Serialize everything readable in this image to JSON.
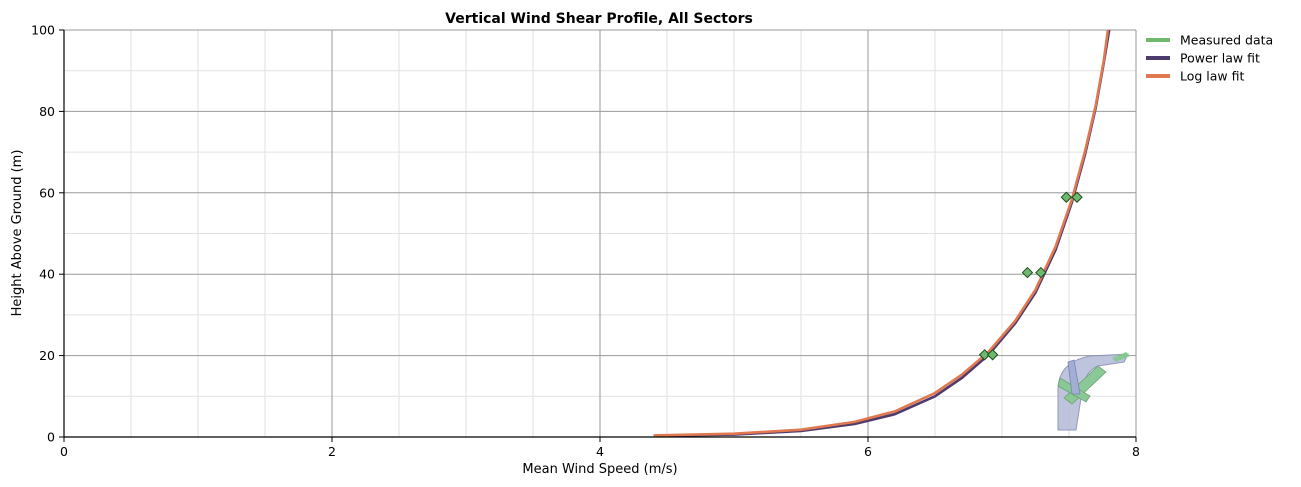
{
  "chart_data": {
    "type": "line",
    "title": "Vertical Wind Shear Profile, All Sectors",
    "xlabel": "Mean Wind Speed (m/s)",
    "ylabel": "Height Above Ground (m)",
    "xlim": [
      0,
      8
    ],
    "ylim": [
      0,
      100
    ],
    "x_ticks": [
      0,
      2,
      4,
      6,
      8
    ],
    "y_ticks": [
      0,
      20,
      40,
      60,
      80,
      100
    ],
    "x_minor_step": 0.5,
    "y_minor_step": 10,
    "grid": true,
    "legend_position": "top-right outside plot",
    "series": [
      {
        "name": "Measured data",
        "kind": "scatter-diamond",
        "color": "#6fb86f",
        "points": [
          {
            "x": 6.87,
            "y": 20.2
          },
          {
            "x": 6.93,
            "y": 20.2
          },
          {
            "x": 7.19,
            "y": 40.4
          },
          {
            "x": 7.29,
            "y": 40.4
          },
          {
            "x": 7.48,
            "y": 58.9
          },
          {
            "x": 7.56,
            "y": 58.9
          }
        ]
      },
      {
        "name": "Power law fit",
        "kind": "line",
        "color": "#4e3b6e",
        "points": [
          {
            "x": 4.4,
            "y": 0.3
          },
          {
            "x": 5.0,
            "y": 0.6
          },
          {
            "x": 5.5,
            "y": 1.5
          },
          {
            "x": 5.9,
            "y": 3.2
          },
          {
            "x": 6.2,
            "y": 5.6
          },
          {
            "x": 6.5,
            "y": 10.0
          },
          {
            "x": 6.7,
            "y": 14.5
          },
          {
            "x": 6.9,
            "y": 20.2
          },
          {
            "x": 7.1,
            "y": 28.0
          },
          {
            "x": 7.25,
            "y": 35.5
          },
          {
            "x": 7.4,
            "y": 46.0
          },
          {
            "x": 7.52,
            "y": 57.5
          },
          {
            "x": 7.62,
            "y": 69.5
          },
          {
            "x": 7.7,
            "y": 81.0
          },
          {
            "x": 7.76,
            "y": 92.0
          },
          {
            "x": 7.8,
            "y": 100.0
          }
        ]
      },
      {
        "name": "Log law fit",
        "kind": "line",
        "color": "#e07850",
        "points": [
          {
            "x": 4.4,
            "y": 0.4
          },
          {
            "x": 5.0,
            "y": 0.8
          },
          {
            "x": 5.5,
            "y": 1.8
          },
          {
            "x": 5.9,
            "y": 3.7
          },
          {
            "x": 6.2,
            "y": 6.3
          },
          {
            "x": 6.5,
            "y": 10.8
          },
          {
            "x": 6.7,
            "y": 15.3
          },
          {
            "x": 6.9,
            "y": 20.9
          },
          {
            "x": 7.1,
            "y": 28.6
          },
          {
            "x": 7.25,
            "y": 36.2
          },
          {
            "x": 7.4,
            "y": 46.8
          },
          {
            "x": 7.52,
            "y": 58.2
          },
          {
            "x": 7.62,
            "y": 70.3
          },
          {
            "x": 7.7,
            "y": 81.6
          },
          {
            "x": 7.76,
            "y": 92.5
          },
          {
            "x": 7.79,
            "y": 100.0
          }
        ]
      }
    ]
  },
  "colors": {
    "major_grid": "#9a9a9a",
    "minor_grid": "#e2e2e2",
    "axis": "#000000",
    "marker_stroke": "#1d4d1d"
  },
  "icons": {
    "sector_icon": "wind-rose-sector-icon"
  }
}
